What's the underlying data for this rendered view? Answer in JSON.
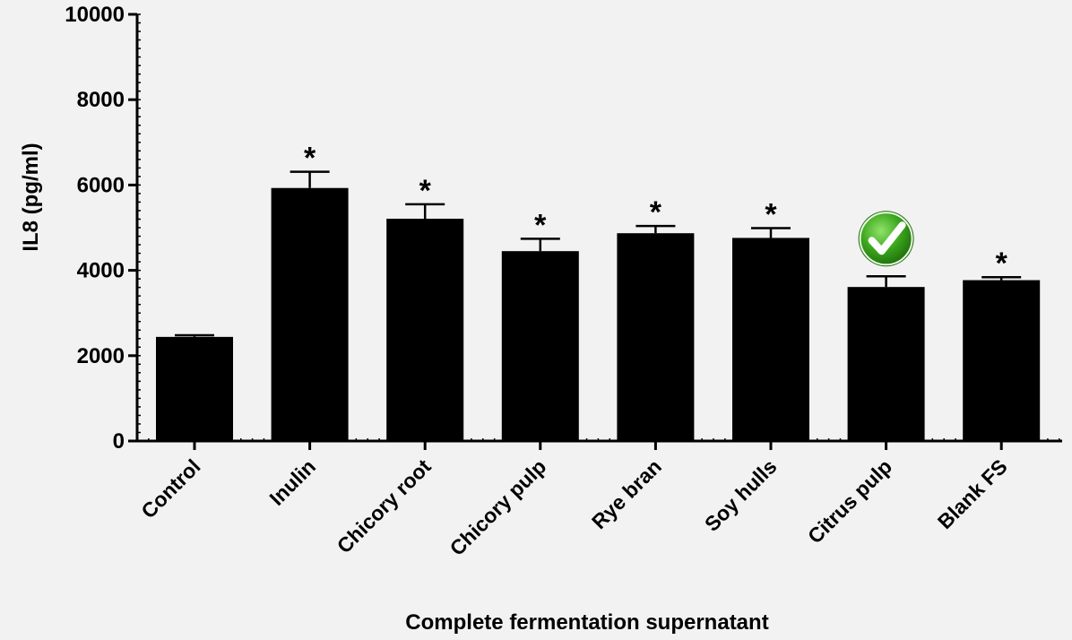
{
  "chart_data": {
    "type": "bar",
    "title": "",
    "xlabel": "Complete fermentation supernatant",
    "ylabel": "IL8 (pg/ml)",
    "ylim": [
      0,
      10000
    ],
    "yticks": [
      "0",
      "2000",
      "4000",
      "6000",
      "8000",
      "10000"
    ],
    "categories": [
      "Control",
      "Inulin",
      "Chicory root",
      "Chicory pulp",
      "Rye bran",
      "Soy hulls",
      "Citrus pulp",
      "Blank FS"
    ],
    "values": [
      2440,
      5930,
      5210,
      4450,
      4870,
      4760,
      3610,
      3770
    ],
    "errors": [
      40,
      380,
      340,
      290,
      170,
      230,
      250,
      70
    ],
    "annotations": [
      "",
      "*",
      "*",
      "*",
      "*",
      "*",
      "checkmark-icon",
      "*"
    ],
    "bar_color": "#000000",
    "checkmark_color": "#3aa51c"
  }
}
